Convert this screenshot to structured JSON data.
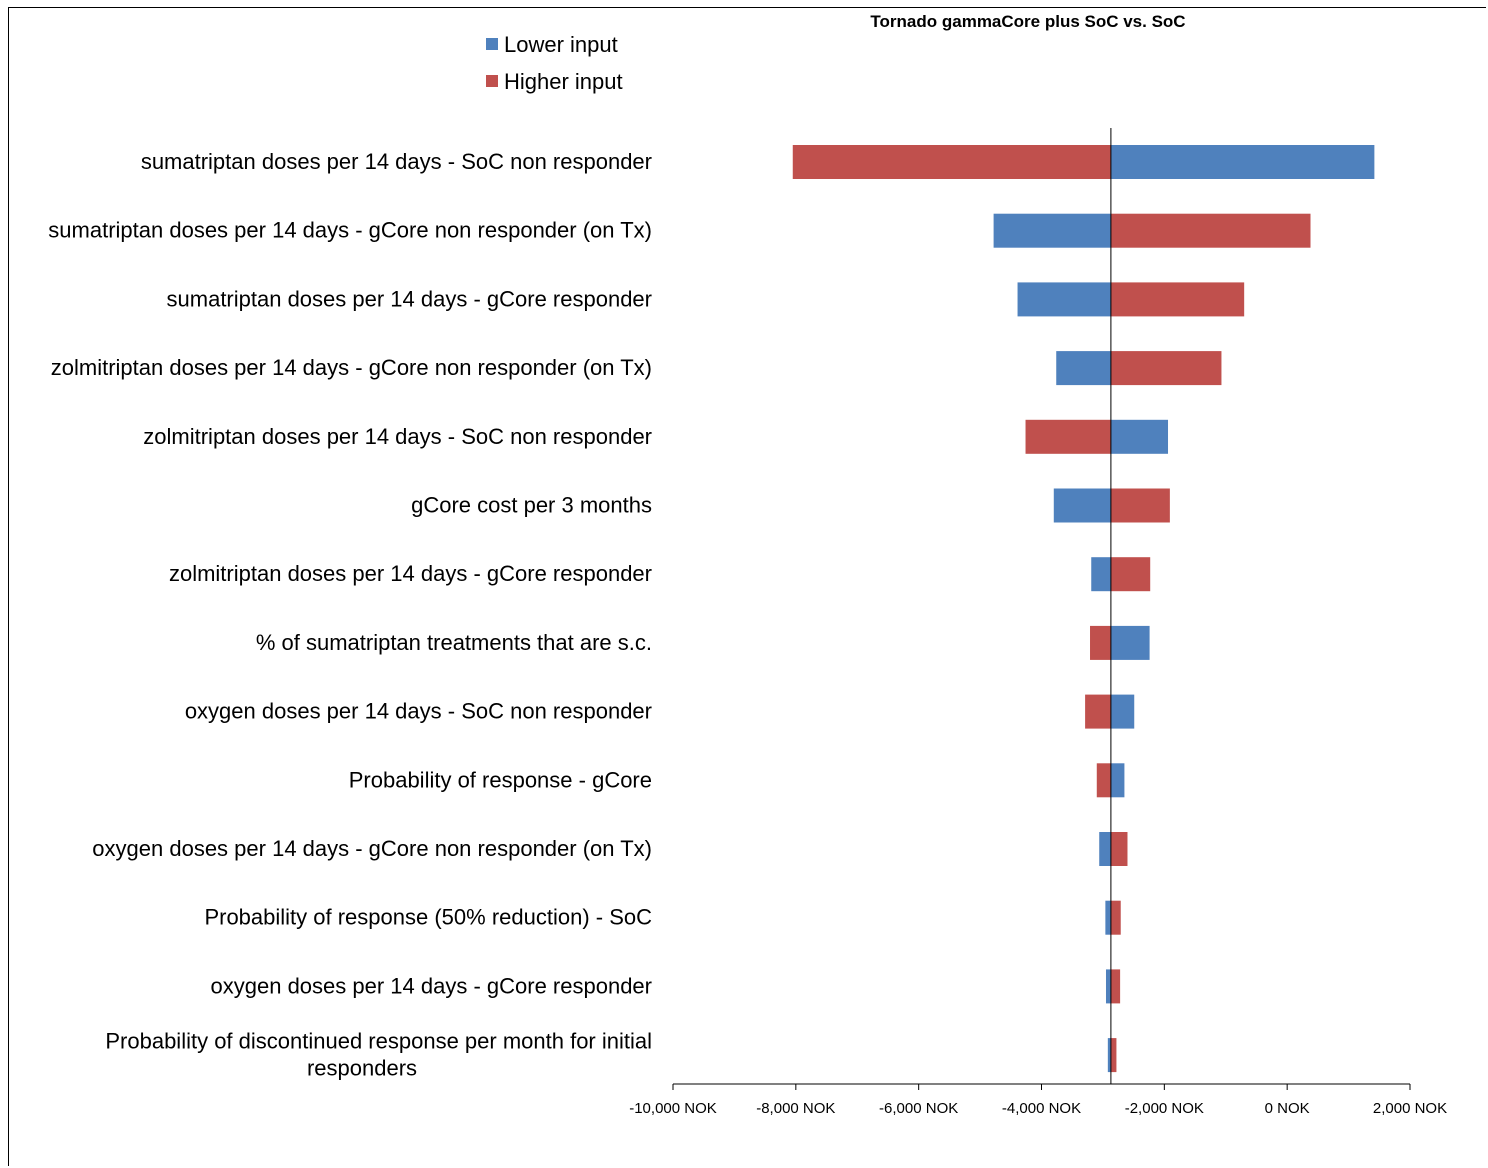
{
  "chart_data": {
    "type": "bar",
    "orientation": "horizontal",
    "variant": "tornado",
    "title": "Tornado gammaCore plus SoC vs. SoC",
    "xlabel": "",
    "ylabel": "",
    "xlim": [
      -10000,
      2000
    ],
    "base_value": -2870,
    "grid": false,
    "legend": {
      "placement": "top-left",
      "entries": [
        "Lower input",
        "Higher input"
      ]
    },
    "colors": {
      "Lower input": "#4F81BD",
      "Higher input": "#C0504D"
    },
    "x_tick_values": [
      -10000,
      -8000,
      -6000,
      -4000,
      -2000,
      0,
      2000
    ],
    "x_tick_labels": [
      "-10,000 NOK",
      "-8,000 NOK",
      "-6,000 NOK",
      "-4,000 NOK",
      "-2,000 NOK",
      "0 NOK",
      "2,000 NOK"
    ],
    "categories": [
      {
        "label_lines": [
          "sumatriptan doses per 14 days - SoC non responder"
        ]
      },
      {
        "label_lines": [
          "sumatriptan doses per 14 days - gCore non responder (on Tx)"
        ]
      },
      {
        "label_lines": [
          "sumatriptan doses per 14 days  - gCore responder"
        ]
      },
      {
        "label_lines": [
          "zolmitriptan doses per 14 days - gCore non responder (on Tx)"
        ]
      },
      {
        "label_lines": [
          "zolmitriptan doses per 14 days - SoC non responder"
        ]
      },
      {
        "label_lines": [
          "gCore cost per 3 months"
        ]
      },
      {
        "label_lines": [
          "zolmitriptan doses per 14 days - gCore responder"
        ]
      },
      {
        "label_lines": [
          "% of sumatriptan treatments that are s.c."
        ]
      },
      {
        "label_lines": [
          "oxygen doses per 14 days - SoC non responder"
        ]
      },
      {
        "label_lines": [
          "Probability of response - gCore"
        ]
      },
      {
        "label_lines": [
          "oxygen doses per 14 days - gCore non responder (on Tx)"
        ]
      },
      {
        "label_lines": [
          "Probability of response (50% reduction) - SoC"
        ]
      },
      {
        "label_lines": [
          "oxygen doses per 14 days - gCore responder"
        ]
      },
      {
        "label_lines": [
          "Probability of discontinued response per month for initial",
          "responders"
        ]
      }
    ],
    "series": [
      {
        "name": "Lower input",
        "values": [
          1420,
          -4780,
          -4390,
          -3760,
          -1940,
          -3800,
          -3190,
          -2240,
          -2490,
          -2650,
          -3060,
          -2960,
          -2950,
          -2920
        ]
      },
      {
        "name": "Higher input",
        "values": [
          -8050,
          380,
          -700,
          -1070,
          -4260,
          -1910,
          -2230,
          -3210,
          -3290,
          -3100,
          -2600,
          -2710,
          -2720,
          -2780
        ]
      }
    ]
  }
}
